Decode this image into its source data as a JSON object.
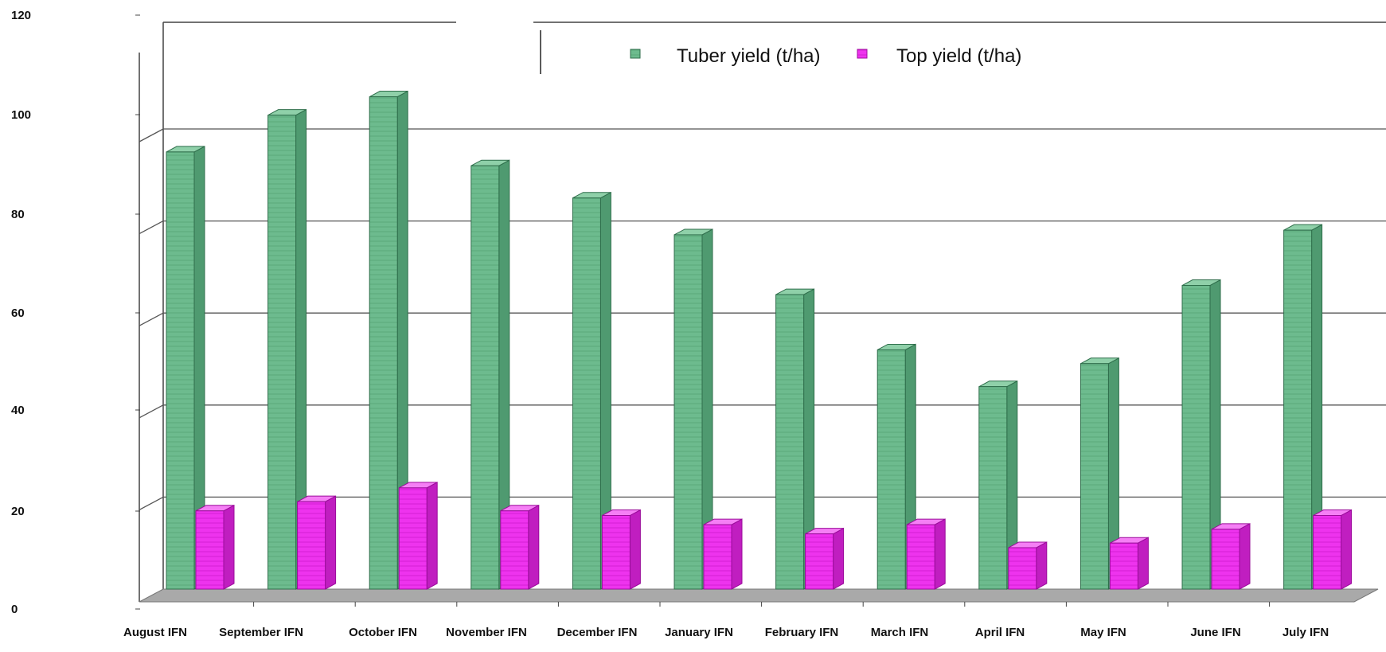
{
  "chart_data": {
    "type": "bar",
    "title": "",
    "xlabel": "",
    "ylabel": "",
    "ylim": [
      0,
      120
    ],
    "yticks": [
      "0",
      "20",
      "40",
      "60",
      "80",
      "100",
      "120"
    ],
    "categories": [
      "August IFN",
      "September IFN",
      "October IFN",
      "November IFN",
      "December IFN",
      "January IFN",
      "February IFN",
      "March IFN",
      "April IFN",
      "May IFN",
      "June IFN",
      "July IFN"
    ],
    "series": [
      {
        "name": "Tuber yield (t/ha)",
        "color": "#6dbb8e",
        "values": [
          95,
          103,
          107,
          92,
          85,
          77,
          64,
          52,
          44,
          49,
          66,
          78
        ]
      },
      {
        "name": "Top yield (t/ha)",
        "color": "#ee33ee",
        "values": [
          17,
          19,
          22,
          17,
          16,
          14,
          12,
          14,
          9,
          10,
          13,
          16
        ]
      }
    ],
    "grid": true,
    "legend_position": "top"
  }
}
